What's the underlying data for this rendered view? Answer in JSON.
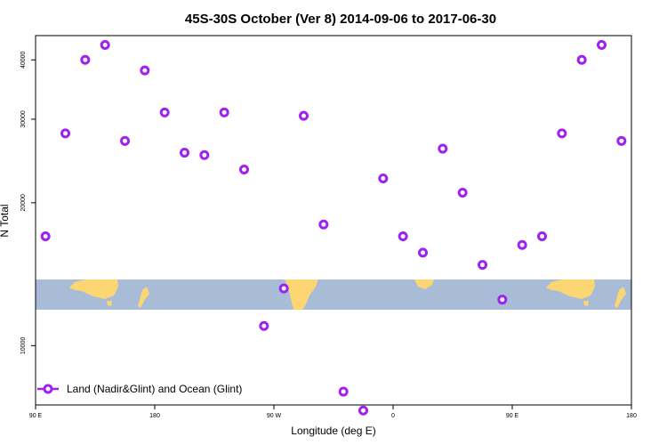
{
  "chart_data": {
    "type": "scatter",
    "title": "45S-30S October (Ver 8)   2014-09-06 to 2017-06-30",
    "xlabel": "Longitude (deg E)",
    "ylabel": "N Total",
    "xlim": [
      90,
      540
    ],
    "ylim": [
      7500,
      45000
    ],
    "y_scale": "log",
    "x_ticks": [
      {
        "value": 90,
        "label": "90 E"
      },
      {
        "value": 180,
        "label": "180"
      },
      {
        "value": 270,
        "label": "90 W"
      },
      {
        "value": 360,
        "label": "0"
      },
      {
        "value": 450,
        "label": "90 E"
      },
      {
        "value": 540,
        "label": "180"
      }
    ],
    "y_ticks": [
      {
        "value": 10000,
        "label": "10000"
      },
      {
        "value": 20000,
        "label": "20000"
      },
      {
        "value": 30000,
        "label": "30000"
      },
      {
        "value": 40000,
        "label": "40000"
      }
    ],
    "legend": {
      "position": "bottom-left"
    },
    "series": [
      {
        "name": "Land (Nadir&Glint) and Ocean (Glint)",
        "color": "#a020f0",
        "marker": "open-circle",
        "x": [
          97.5,
          112.5,
          127.5,
          142.5,
          157.5,
          172.5,
          187.5,
          202.5,
          217.5,
          232.5,
          247.5,
          262.5,
          277.5,
          292.5,
          307.5,
          322.5,
          337.5,
          352.5,
          367.5,
          382.5,
          397.5,
          412.5,
          427.5,
          442.5,
          457.5,
          472.5,
          487.5,
          502.5,
          517.5,
          532.5
        ],
        "y": [
          17000,
          28000,
          40000,
          43000,
          27000,
          38000,
          31000,
          25500,
          25200,
          31000,
          23500,
          11000,
          13200,
          30500,
          18000,
          8000,
          7300,
          22500,
          17000,
          15700,
          26000,
          21000,
          14800,
          12500,
          16300,
          17000,
          28000,
          40000,
          43000,
          27000
        ]
      }
    ],
    "colors": {
      "marker": "#a020f0",
      "ocean": "#a8bcd8",
      "land": "#fdd674"
    }
  }
}
